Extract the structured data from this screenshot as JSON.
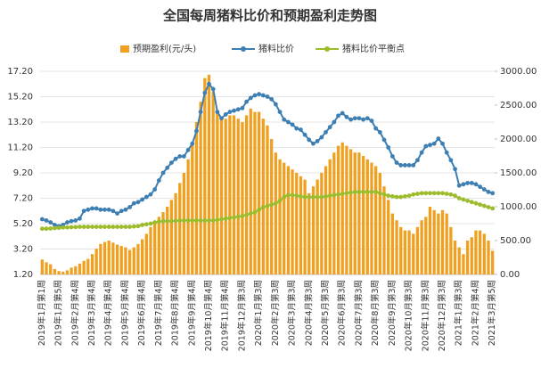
{
  "chart_data": {
    "type": "bar-line",
    "title": "全国每周猪料比价和预期盈利走势图",
    "categories": [
      "2019年1月第1周",
      null,
      null,
      null,
      "2019年1月第5周",
      null,
      null,
      null,
      "2019年2月第4周",
      null,
      null,
      null,
      "2019年3月第4周",
      null,
      null,
      null,
      "2019年4月第4周",
      null,
      null,
      null,
      "2019年5月第4周",
      null,
      null,
      null,
      "2019年6月第4周",
      null,
      null,
      null,
      "2019年7月第4周",
      null,
      null,
      null,
      "2019年8月第4周",
      null,
      null,
      null,
      "2019年9月第4周",
      null,
      null,
      null,
      "2019年10月第4周",
      null,
      null,
      null,
      "2019年11月第4周",
      null,
      null,
      null,
      "2019年12月第3周",
      null,
      null,
      null,
      "2020年1月第3周",
      null,
      null,
      null,
      "2020年2月第3周",
      null,
      null,
      null,
      "2020年3月第3周",
      null,
      null,
      null,
      "2020年4月第3周",
      null,
      null,
      null,
      "2020年5月第3周",
      null,
      null,
      null,
      "2020年6月第3周",
      null,
      null,
      null,
      "2020年7月第3周",
      null,
      null,
      null,
      "2020年8月第3周",
      null,
      null,
      null,
      "2020年9月第3周",
      null,
      null,
      null,
      "2020年10月第3周",
      null,
      null,
      null,
      "2020年11月第3周",
      null,
      null,
      null,
      "2020年12月第3周",
      null,
      null,
      null,
      "2021年1月第3周",
      null,
      null,
      null,
      "2021年2月第4周",
      null,
      null,
      null,
      "2021年3月第5周"
    ],
    "series": [
      {
        "name": "预期盈利(元/头)",
        "kind": "bar",
        "axis": "y2",
        "color": "#f0a01e",
        "values": [
          220,
          180,
          150,
          80,
          50,
          40,
          60,
          100,
          120,
          160,
          200,
          230,
          300,
          380,
          450,
          480,
          500,
          470,
          440,
          420,
          400,
          360,
          400,
          450,
          520,
          600,
          700,
          780,
          850,
          920,
          1000,
          1100,
          1200,
          1350,
          1500,
          1700,
          1950,
          2250,
          2550,
          2900,
          2950,
          2700,
          2400,
          2300,
          2300,
          2350,
          2350,
          2300,
          2250,
          2350,
          2450,
          2400,
          2400,
          2300,
          2200,
          2000,
          1800,
          1700,
          1650,
          1600,
          1550,
          1500,
          1450,
          1400,
          1200,
          1300,
          1400,
          1500,
          1600,
          1700,
          1800,
          1900,
          1950,
          1900,
          1850,
          1800,
          1800,
          1750,
          1700,
          1650,
          1600,
          1500,
          1300,
          1100,
          900,
          800,
          700,
          650,
          650,
          600,
          700,
          800,
          850,
          1000,
          950,
          900,
          950,
          900,
          700,
          500,
          400,
          300,
          500,
          550,
          650,
          650,
          600,
          500,
          350
        ]
      },
      {
        "name": "猪料比价",
        "kind": "line",
        "color": "#3d7fb3",
        "values": [
          5.55,
          5.45,
          5.3,
          5.1,
          5.0,
          5.1,
          5.3,
          5.4,
          5.45,
          5.6,
          6.2,
          6.3,
          6.4,
          6.4,
          6.3,
          6.3,
          6.3,
          6.2,
          6.0,
          6.2,
          6.3,
          6.5,
          6.8,
          6.9,
          7.1,
          7.3,
          7.5,
          7.9,
          8.6,
          9.2,
          9.6,
          10.0,
          10.3,
          10.5,
          10.5,
          11.0,
          11.5,
          12.5,
          14.0,
          15.5,
          16.2,
          15.8,
          14.0,
          13.5,
          13.8,
          14.0,
          14.1,
          14.2,
          14.3,
          14.8,
          15.1,
          15.3,
          15.4,
          15.3,
          15.2,
          15.0,
          14.6,
          14.0,
          13.4,
          13.2,
          13.0,
          12.7,
          12.6,
          12.2,
          11.8,
          11.5,
          11.7,
          12.0,
          12.4,
          12.8,
          13.2,
          13.7,
          13.9,
          13.6,
          13.4,
          13.5,
          13.5,
          13.4,
          13.5,
          13.3,
          12.7,
          12.4,
          11.8,
          11.2,
          10.5,
          10.0,
          9.8,
          9.8,
          9.8,
          9.8,
          10.2,
          10.8,
          11.3,
          11.4,
          11.5,
          11.9,
          11.5,
          10.8,
          10.2,
          9.5,
          8.2,
          8.3,
          8.4,
          8.4,
          8.3,
          8.1,
          7.9,
          7.7,
          7.6
        ]
      },
      {
        "name": "猪料比价平衡点",
        "kind": "line",
        "color": "#9cbc2c",
        "values": [
          4.8,
          4.8,
          4.82,
          4.85,
          4.87,
          4.9,
          4.9,
          4.92,
          4.93,
          4.95,
          4.95,
          4.95,
          4.95,
          4.95,
          4.95,
          4.95,
          4.95,
          4.95,
          4.95,
          4.95,
          4.95,
          4.95,
          4.98,
          5.0,
          5.1,
          5.15,
          5.2,
          5.3,
          5.35,
          5.4,
          5.4,
          5.4,
          5.42,
          5.45,
          5.45,
          5.45,
          5.45,
          5.45,
          5.45,
          5.45,
          5.45,
          5.45,
          5.5,
          5.55,
          5.6,
          5.65,
          5.7,
          5.75,
          5.8,
          5.9,
          6.0,
          6.1,
          6.3,
          6.5,
          6.6,
          6.7,
          6.8,
          7.0,
          7.3,
          7.45,
          7.45,
          7.4,
          7.35,
          7.3,
          7.3,
          7.3,
          7.3,
          7.3,
          7.35,
          7.4,
          7.45,
          7.5,
          7.55,
          7.6,
          7.65,
          7.7,
          7.7,
          7.7,
          7.7,
          7.7,
          7.7,
          7.6,
          7.5,
          7.4,
          7.35,
          7.3,
          7.3,
          7.35,
          7.4,
          7.5,
          7.55,
          7.6,
          7.6,
          7.6,
          7.6,
          7.6,
          7.6,
          7.55,
          7.5,
          7.4,
          7.2,
          7.1,
          7.0,
          6.9,
          6.8,
          6.7,
          6.6,
          6.5,
          6.4
        ]
      }
    ],
    "ylim": [
      1.2,
      17.2
    ],
    "yticks": [
      {
        "value": 1.2,
        "label": "1.20"
      },
      {
        "value": 3.2,
        "label": "3.20"
      },
      {
        "value": 5.2,
        "label": "5.20"
      },
      {
        "value": 7.2,
        "label": "7.20"
      },
      {
        "value": 9.2,
        "label": "9.20"
      },
      {
        "value": 11.2,
        "label": "11.20"
      },
      {
        "value": 13.2,
        "label": "13.20"
      },
      {
        "value": 15.2,
        "label": "15.20"
      },
      {
        "value": 17.2,
        "label": "17.20"
      }
    ],
    "y2lim": [
      0,
      3000
    ],
    "y2ticks": [
      {
        "value": 0,
        "label": "0.00"
      },
      {
        "value": 500,
        "label": "500.00"
      },
      {
        "value": 1000,
        "label": "1000.00"
      },
      {
        "value": 1500,
        "label": "1500.00"
      },
      {
        "value": 2000,
        "label": "2000.00"
      },
      {
        "value": 2500,
        "label": "2500.00"
      },
      {
        "value": 3000,
        "label": "3000.00"
      }
    ],
    "grid": true
  }
}
